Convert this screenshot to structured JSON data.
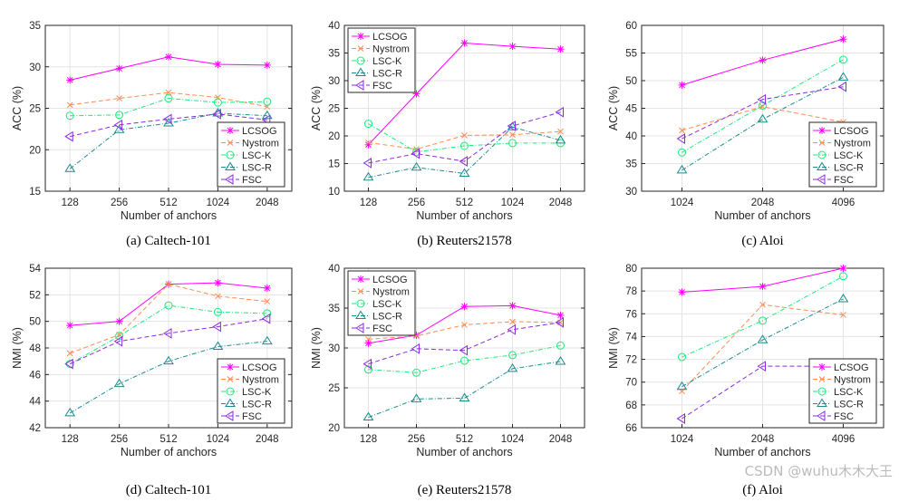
{
  "chart_data": [
    {
      "type": "line",
      "caption": "(a) Caltech-101",
      "xlabel": "Number of anchors",
      "ylabel": "ACC (%)",
      "categories": [
        "128",
        "256",
        "512",
        "1024",
        "2048"
      ],
      "ylim": [
        15,
        35
      ],
      "yticks": [
        15,
        20,
        25,
        30,
        35
      ],
      "grid": true,
      "legend": "bottom-right",
      "series": [
        {
          "name": "LCSOG",
          "values": [
            28.4,
            29.8,
            31.2,
            30.3,
            30.2
          ]
        },
        {
          "name": "Nystrom",
          "values": [
            25.4,
            26.2,
            26.9,
            26.3,
            25.2
          ]
        },
        {
          "name": "LSC-K",
          "values": [
            24.1,
            24.2,
            26.2,
            25.7,
            25.8
          ]
        },
        {
          "name": "LSC-R",
          "values": [
            17.7,
            22.4,
            23.2,
            24.4,
            24.1
          ]
        },
        {
          "name": "FSC",
          "values": [
            21.6,
            23.0,
            23.7,
            24.3,
            23.6
          ]
        }
      ]
    },
    {
      "type": "line",
      "caption": "(b) Reuters21578",
      "xlabel": "Number of anchors",
      "ylabel": "ACC (%)",
      "categories": [
        "128",
        "256",
        "512",
        "1024",
        "2048"
      ],
      "ylim": [
        10,
        40
      ],
      "yticks": [
        10,
        15,
        20,
        25,
        30,
        35,
        40
      ],
      "grid": true,
      "legend": "top-left",
      "series": [
        {
          "name": "LCSOG",
          "values": [
            18.4,
            27.6,
            36.8,
            36.2,
            35.7
          ]
        },
        {
          "name": "Nystrom",
          "values": [
            18.8,
            17.6,
            20.1,
            20.2,
            20.8
          ]
        },
        {
          "name": "LSC-K",
          "values": [
            22.2,
            17.1,
            18.2,
            18.7,
            18.7
          ]
        },
        {
          "name": "LSC-R",
          "values": [
            12.5,
            14.3,
            13.2,
            21.6,
            19.2
          ]
        },
        {
          "name": "FSC",
          "values": [
            15.1,
            16.8,
            15.4,
            21.8,
            24.3
          ]
        }
      ]
    },
    {
      "type": "line",
      "caption": "(c) Aloi",
      "xlabel": "Number of anchors",
      "ylabel": "ACC (%)",
      "categories": [
        "1024",
        "2048",
        "4096"
      ],
      "ylim": [
        30,
        60
      ],
      "yticks": [
        30,
        35,
        40,
        45,
        50,
        55,
        60
      ],
      "grid": true,
      "legend": "bottom-right",
      "series": [
        {
          "name": "LCSOG",
          "values": [
            49.2,
            53.7,
            57.5
          ]
        },
        {
          "name": "Nystrom",
          "values": [
            41.0,
            45.3,
            42.5
          ]
        },
        {
          "name": "LSC-K",
          "values": [
            37.0,
            45.5,
            53.8
          ]
        },
        {
          "name": "LSC-R",
          "values": [
            33.8,
            43.0,
            50.6
          ]
        },
        {
          "name": "FSC",
          "values": [
            39.5,
            46.6,
            48.9
          ]
        }
      ]
    },
    {
      "type": "line",
      "caption": "(d) Caltech-101",
      "xlabel": "Number of anchors",
      "ylabel": "NMI (%)",
      "categories": [
        "128",
        "256",
        "512",
        "1024",
        "2048"
      ],
      "ylim": [
        42,
        54
      ],
      "yticks": [
        42,
        44,
        46,
        48,
        50,
        52,
        54
      ],
      "grid": true,
      "legend": "bottom-right",
      "series": [
        {
          "name": "LCSOG",
          "values": [
            49.7,
            50.0,
            52.8,
            52.9,
            52.5
          ]
        },
        {
          "name": "Nystrom",
          "values": [
            47.6,
            49.0,
            52.8,
            51.9,
            51.5
          ]
        },
        {
          "name": "LSC-K",
          "values": [
            46.8,
            48.9,
            51.2,
            50.7,
            50.6
          ]
        },
        {
          "name": "LSC-R",
          "values": [
            43.1,
            45.3,
            47.0,
            48.1,
            48.5
          ]
        },
        {
          "name": "FSC",
          "values": [
            46.8,
            48.5,
            49.1,
            49.6,
            50.2
          ]
        }
      ]
    },
    {
      "type": "line",
      "caption": "(e) Reuters21578",
      "xlabel": "Number of anchors",
      "ylabel": "NMI (%)",
      "categories": [
        "128",
        "256",
        "512",
        "1024",
        "2048"
      ],
      "ylim": [
        20,
        40
      ],
      "yticks": [
        20,
        25,
        30,
        35,
        40
      ],
      "grid": true,
      "legend": "top-left",
      "series": [
        {
          "name": "LCSOG",
          "values": [
            30.6,
            31.6,
            35.2,
            35.3,
            34.1
          ]
        },
        {
          "name": "Nystrom",
          "values": [
            31.1,
            31.5,
            32.9,
            33.3,
            33.2
          ]
        },
        {
          "name": "LSC-K",
          "values": [
            27.3,
            26.9,
            28.4,
            29.1,
            30.3
          ]
        },
        {
          "name": "LSC-R",
          "values": [
            21.3,
            23.6,
            23.7,
            27.4,
            28.3
          ]
        },
        {
          "name": "FSC",
          "values": [
            28.0,
            29.9,
            29.7,
            32.3,
            33.2
          ]
        }
      ]
    },
    {
      "type": "line",
      "caption": "(f) Aloi",
      "xlabel": "Number of anchors",
      "ylabel": "NMI (%)",
      "categories": [
        "1024",
        "2048",
        "4096"
      ],
      "ylim": [
        66,
        80
      ],
      "yticks": [
        66,
        68,
        70,
        72,
        74,
        76,
        78,
        80
      ],
      "grid": true,
      "legend": "bottom-right",
      "series": [
        {
          "name": "LCSOG",
          "values": [
            77.9,
            78.4,
            80.0
          ]
        },
        {
          "name": "Nystrom",
          "values": [
            69.2,
            76.8,
            75.9
          ]
        },
        {
          "name": "LSC-K",
          "values": [
            72.2,
            75.4,
            79.3
          ]
        },
        {
          "name": "LSC-R",
          "values": [
            69.6,
            73.7,
            77.3
          ]
        },
        {
          "name": "FSC",
          "values": [
            66.8,
            71.4,
            71.4
          ]
        }
      ]
    }
  ],
  "series_style": {
    "LCSOG": {
      "color": "#ff00ff",
      "dash": "solid",
      "marker": "star"
    },
    "Nystrom": {
      "color": "#ff8c50",
      "dash": "dashed",
      "marker": "x"
    },
    "LSC-K": {
      "color": "#1ee87a",
      "dash": "dash-dot",
      "marker": "circle"
    },
    "LSC-R": {
      "color": "#1a8c8c",
      "dash": "dash-dot",
      "marker": "triangle-up"
    },
    "FSC": {
      "color": "#8a2be2",
      "dash": "dashed",
      "marker": "triangle-left"
    }
  },
  "watermark": "CSDN @wuhu木木大王"
}
